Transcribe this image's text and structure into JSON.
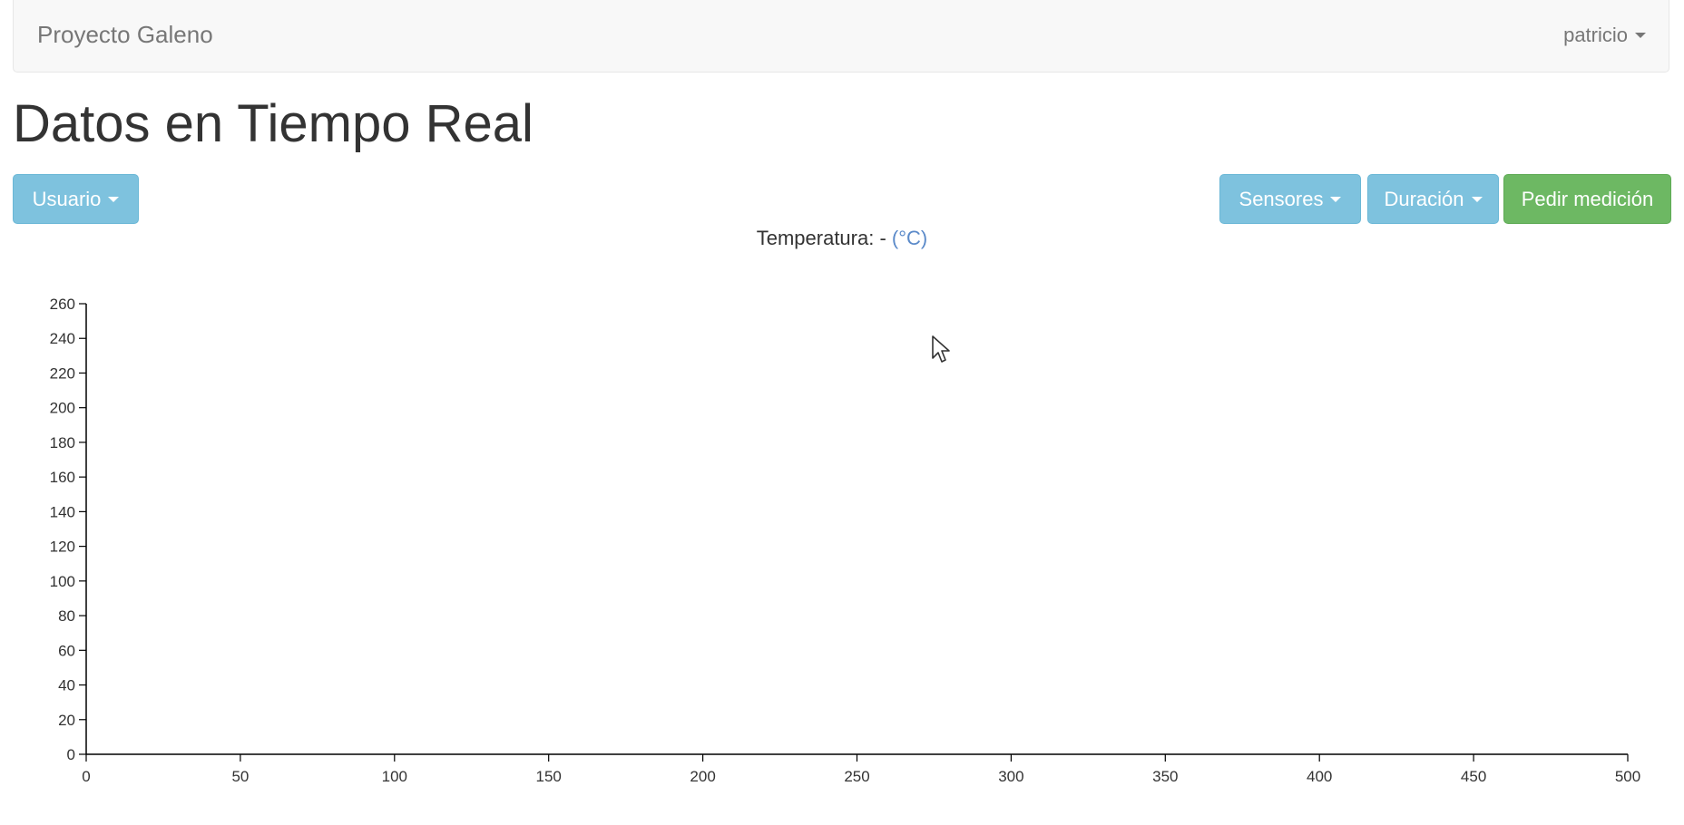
{
  "navbar": {
    "brand": "Proyecto Galeno",
    "user": "patricio"
  },
  "page": {
    "title": "Datos en Tiempo Real"
  },
  "toolbar": {
    "usuario_label": "Usuario",
    "sensores_label": "Sensores",
    "duracion_label": "Duración",
    "pedir_label": "Pedir medición"
  },
  "chart_header": {
    "label": "Temperatura:",
    "value": "-",
    "unit": "(°C)"
  },
  "colors": {
    "info_button": "#7ec2de",
    "success_button": "#6db863",
    "unit_text": "#5b8ac9"
  },
  "chart_data": {
    "type": "line",
    "series": [],
    "xlim": [
      0,
      500
    ],
    "ylim": [
      0,
      260
    ],
    "x_ticks": [
      0,
      50,
      100,
      150,
      200,
      250,
      300,
      350,
      400,
      450,
      500
    ],
    "y_ticks": [
      0,
      20,
      40,
      60,
      80,
      100,
      120,
      140,
      160,
      180,
      200,
      220,
      240,
      260
    ],
    "grid": false
  }
}
